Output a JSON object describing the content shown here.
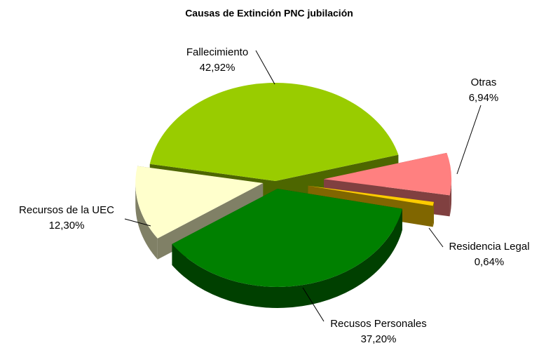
{
  "chart_data": {
    "type": "pie",
    "title": "Causas de Extinción PNC jubilación",
    "categories": [
      "Fallecimiento",
      "Otras",
      "Residencia Legal",
      "Recusos Personales",
      "Recursos de la UEC"
    ],
    "values": [
      42.92,
      6.94,
      0.64,
      37.2,
      12.3
    ],
    "value_labels": [
      "42,92%",
      "6,94%",
      "0,64%",
      "37,20%",
      "12,30%"
    ],
    "colors": [
      "#99cc00",
      "#ff8080",
      "#ffcc00",
      "#008000",
      "#ffffcc"
    ]
  }
}
